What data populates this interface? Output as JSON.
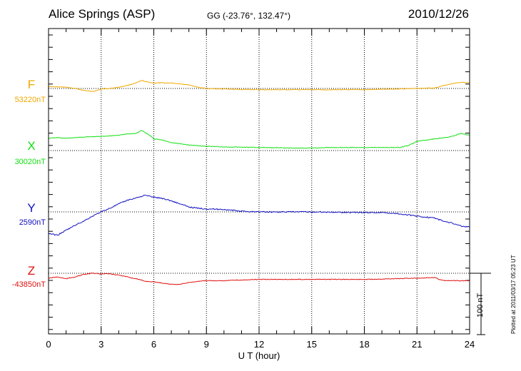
{
  "header": {
    "station": "Alice Springs (ASP)",
    "coords": "GG (-23.76°, 132.47°)",
    "date": "2010/12/26"
  },
  "footer": {
    "plotted": "Plotted at 2011/03/17 05:23 UT"
  },
  "chart_data": {
    "type": "line",
    "xlabel": "U T (hour)",
    "xlim": [
      0,
      24
    ],
    "xticks": [
      0,
      3,
      6,
      9,
      12,
      15,
      18,
      21,
      24
    ],
    "grid": true,
    "scale_bar": {
      "label": "100 nT",
      "value": 100
    },
    "series": [
      {
        "name": "F",
        "baseline_label": "53220nT",
        "baseline": 53220,
        "color": "#f0a800",
        "x": [
          0,
          1,
          1.5,
          2,
          2.5,
          3,
          3.5,
          4,
          4.5,
          5,
          5.3,
          5.7,
          6,
          7,
          8,
          8.5,
          9,
          10,
          12,
          15,
          18,
          21,
          22,
          23,
          23.5,
          24
        ],
        "y": [
          53223,
          53222,
          53220,
          53217,
          53215,
          53219,
          53220,
          53222,
          53225,
          53229,
          53233,
          53230,
          53229,
          53229,
          53226,
          53222,
          53220,
          53219,
          53218,
          53218,
          53218,
          53220,
          53221,
          53228,
          53230,
          53229
        ]
      },
      {
        "name": "X",
        "baseline_label": "30020nT",
        "baseline": 30020,
        "color": "#10e010",
        "x": [
          0,
          0.5,
          1,
          2,
          3,
          4,
          4.5,
          5,
          5.3,
          5.7,
          6,
          6.5,
          7,
          8,
          9,
          10,
          12,
          14,
          15,
          16,
          18,
          20,
          20.5,
          21,
          22,
          23,
          23.5,
          24
        ],
        "y": [
          30040,
          30041,
          30040,
          30042,
          30043,
          30045,
          30047,
          30048,
          30053,
          30046,
          30039,
          30037,
          30033,
          30029,
          30027,
          30026,
          30025,
          30024,
          30024,
          30025,
          30025,
          30025,
          30028,
          30035,
          30039,
          30043,
          30048,
          30045
        ]
      },
      {
        "name": "Y",
        "baseline_label": "2590nT",
        "baseline": 2590,
        "color": "#1010c0",
        "x": [
          0,
          0.5,
          1,
          1.5,
          2,
          2.5,
          3,
          3.5,
          4,
          4.5,
          5,
          5.5,
          6,
          6.5,
          7,
          7.5,
          8,
          8.5,
          9,
          10,
          11,
          12,
          13,
          15,
          18,
          19,
          20,
          21,
          22,
          22.5,
          23,
          23.5,
          24
        ],
        "y": [
          2555,
          2552,
          2560,
          2568,
          2575,
          2583,
          2590,
          2596,
          2603,
          2609,
          2613,
          2617,
          2614,
          2612,
          2608,
          2603,
          2598,
          2596,
          2595,
          2594,
          2591,
          2590,
          2590,
          2590,
          2589,
          2589,
          2587,
          2583,
          2580,
          2575,
          2572,
          2567,
          2565
        ]
      },
      {
        "name": "Z",
        "baseline_label": "-43850nT",
        "baseline": -43850,
        "color": "#e01010",
        "x": [
          0,
          0.5,
          1,
          1.5,
          2,
          2.5,
          3,
          3.5,
          4,
          4.5,
          5,
          5.5,
          6,
          6.5,
          7,
          7.5,
          8,
          9,
          10,
          12,
          15,
          18,
          21,
          22,
          22.5,
          23,
          24
        ],
        "y": [
          -43858,
          -43856,
          -43859,
          -43856,
          -43852,
          -43850,
          -43851,
          -43851,
          -43853,
          -43856,
          -43859,
          -43863,
          -43864,
          -43866,
          -43868,
          -43868,
          -43865,
          -43862,
          -43862,
          -43860,
          -43860,
          -43860,
          -43858,
          -43857,
          -43862,
          -43862,
          -43862
        ]
      }
    ]
  }
}
